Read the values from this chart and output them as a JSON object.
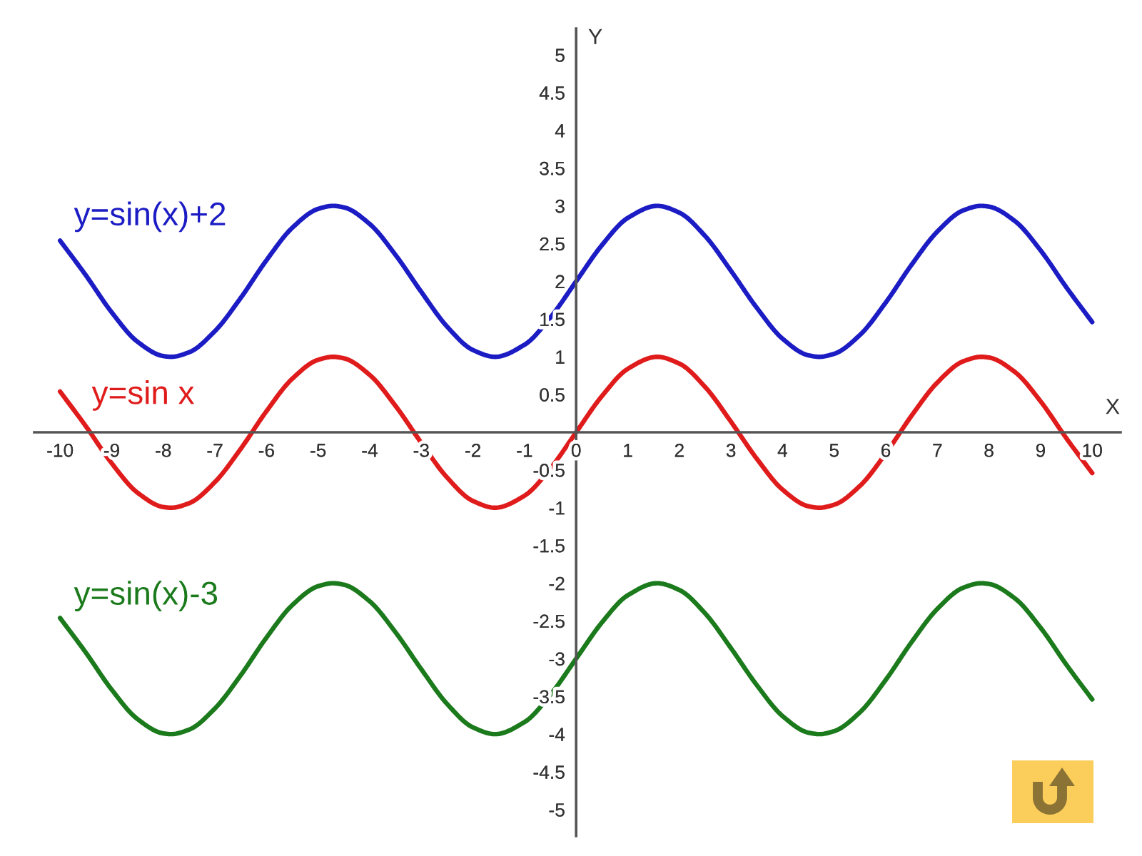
{
  "chart_data": {
    "type": "line",
    "xlabel": "X",
    "ylabel": "Y",
    "x": [
      -10,
      -9.5,
      -9,
      -8.5,
      -8,
      -7.85,
      -7.5,
      -7,
      -6.5,
      -6,
      -5.5,
      -5,
      -4.71,
      -4.5,
      -4,
      -3.5,
      -3,
      -2.5,
      -2,
      -1.57,
      -1,
      -0.5,
      0,
      0.5,
      1,
      1.57,
      2,
      2.5,
      3,
      3.5,
      4,
      4.5,
      4.71,
      5,
      5.5,
      6,
      6.5,
      7,
      7.5,
      7.85,
      8,
      8.5,
      9,
      9.5,
      10
    ],
    "series": [
      {
        "name": "y=sin(x)+2",
        "color": "#1c1cc4",
        "values": [
          2.54,
          2.08,
          1.59,
          1.2,
          1.01,
          1,
          1.06,
          1.34,
          1.78,
          2.28,
          2.71,
          2.96,
          3,
          2.98,
          2.76,
          2.35,
          1.86,
          1.4,
          1.09,
          1,
          1.16,
          1.52,
          2,
          2.48,
          2.84,
          3,
          2.91,
          2.6,
          2.14,
          1.65,
          1.24,
          1.02,
          1,
          1.04,
          1.29,
          1.72,
          2.22,
          2.66,
          2.94,
          3,
          2.99,
          2.8,
          2.41,
          1.92,
          1.46
        ]
      },
      {
        "name": "y=sin x",
        "color": "#e01b1b",
        "values": [
          0.54,
          0.08,
          -0.41,
          -0.8,
          -0.99,
          -1,
          -0.94,
          -0.66,
          -0.22,
          0.28,
          0.71,
          0.96,
          1,
          0.98,
          0.76,
          0.35,
          -0.14,
          -0.6,
          -0.91,
          -1,
          -0.84,
          -0.48,
          0,
          0.48,
          0.84,
          1,
          0.91,
          0.6,
          0.14,
          -0.35,
          -0.76,
          -0.98,
          -1,
          -0.96,
          -0.71,
          -0.28,
          0.22,
          0.66,
          0.94,
          1,
          0.99,
          0.8,
          0.41,
          -0.08,
          -0.54
        ]
      },
      {
        "name": "y=sin(x)-3",
        "color": "#1b7a1b",
        "values": [
          -2.46,
          -2.92,
          -3.41,
          -3.8,
          -3.99,
          -4,
          -3.94,
          -3.66,
          -3.22,
          -2.72,
          -2.29,
          -2.04,
          -2,
          -2.02,
          -2.24,
          -2.65,
          -3.14,
          -3.6,
          -3.91,
          -4,
          -3.84,
          -3.48,
          -3,
          -2.52,
          -2.16,
          -2,
          -2.09,
          -2.4,
          -2.86,
          -3.35,
          -3.76,
          -3.98,
          -4,
          -3.96,
          -3.71,
          -3.28,
          -2.78,
          -2.34,
          -2.06,
          -2,
          -2.01,
          -2.2,
          -2.59,
          -3.08,
          -3.54
        ]
      }
    ],
    "xlim": [
      -10.5,
      10.55
    ],
    "ylim": [
      -5.35,
      5.35
    ],
    "xticks": [
      -10,
      -9,
      -8,
      -7,
      -6,
      -5,
      -4,
      -3,
      -2,
      -1,
      0,
      1,
      2,
      3,
      4,
      5,
      6,
      7,
      8,
      9,
      10
    ],
    "yticks": [
      -5,
      -4.5,
      -4,
      -3.5,
      -3,
      -2.5,
      -2,
      -1.5,
      -1,
      -0.5,
      0.5,
      1,
      1.5,
      2,
      2.5,
      3,
      3.5,
      4,
      4.5,
      5
    ],
    "grid": false,
    "legend": false,
    "marker": "none",
    "line_style": "solid"
  }
}
